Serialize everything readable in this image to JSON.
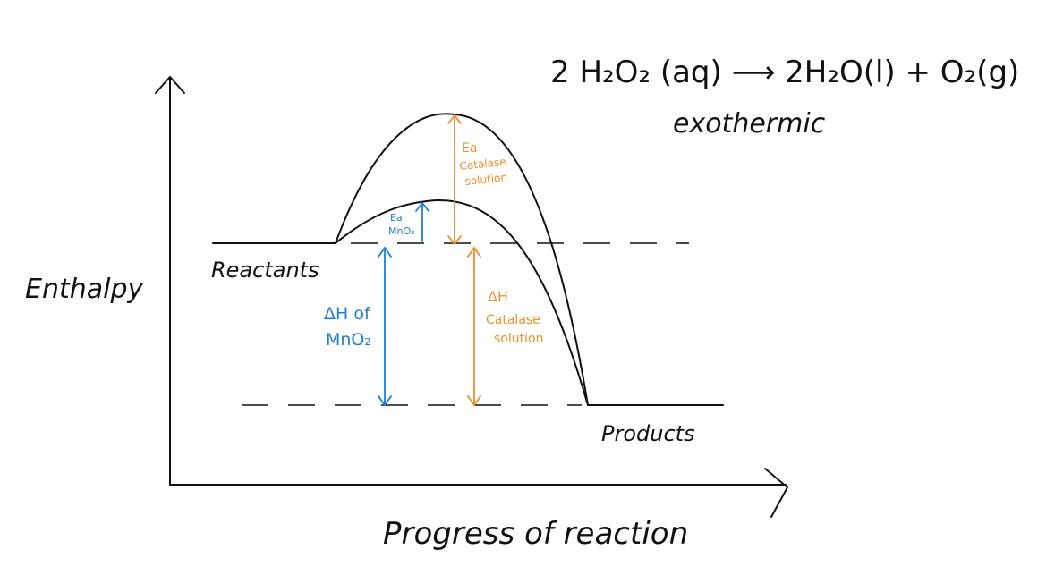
{
  "equation": "2 H₂O₂ (aq) ⟶ 2H₂O(l) + O₂(g)",
  "reaction_type": "exothermic",
  "axes": {
    "y_label": "Enthalpy",
    "x_label": "Progress of reaction"
  },
  "levels": {
    "reactants": "Reactants",
    "products": "Products"
  },
  "annotations": {
    "ea_mno2": [
      "Ea",
      "MnO₂"
    ],
    "ea_catalase": [
      "Ea",
      "Catalase",
      "solution"
    ],
    "dh_mno2": [
      "ΔH of",
      "MnO₂"
    ],
    "dh_catalase": [
      "ΔH",
      "Catalase",
      "solution"
    ]
  },
  "colors": {
    "ink": "#111111",
    "mno2": "#1f7fd4",
    "catalase": "#e9922d"
  }
}
